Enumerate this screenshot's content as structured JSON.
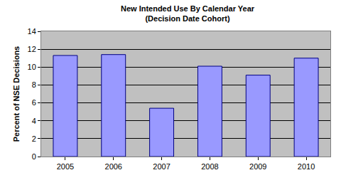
{
  "chart_data": {
    "type": "bar",
    "title": "New Intended Use By Calendar Year",
    "subtitle": "(Decision Date Cohort)",
    "y_label": "Percent of NSE Decisions",
    "categories": [
      "2005",
      "2006",
      "2007",
      "2008",
      "2009",
      "2010"
    ],
    "values": [
      11.3,
      11.4,
      5.4,
      10.1,
      9.1,
      11.0
    ],
    "color": "#9999ff",
    "ylim": [
      0,
      14
    ],
    "yticks": [
      0,
      2,
      4,
      6,
      8,
      10,
      12,
      14
    ],
    "grid": true
  }
}
